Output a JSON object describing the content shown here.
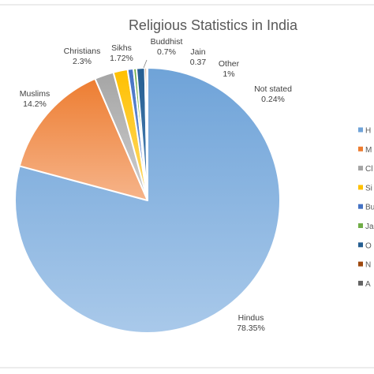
{
  "chart_data": {
    "type": "pie",
    "title": "Religious Statistics in India",
    "legend_position": "right",
    "slices": [
      {
        "name": "Hindus",
        "value": 78.35,
        "value_label": "78.35%",
        "legend_label": "H",
        "color": "#6fa3d8",
        "color_light": "#a9c9ea"
      },
      {
        "name": "Muslims",
        "value": 14.2,
        "value_label": "14.2%",
        "legend_label": "M",
        "color": "#ed7d31",
        "color_light": "#f6b48a"
      },
      {
        "name": "Christians",
        "value": 2.3,
        "value_label": "2.3%",
        "legend_label": "Cl",
        "color": "#a5a5a5",
        "color_light": "#cfcfcf"
      },
      {
        "name": "Sikhs",
        "value": 1.72,
        "value_label": "1.72%",
        "legend_label": "Si",
        "color": "#ffc000",
        "color_light": "#ffdb6e"
      },
      {
        "name": "Buddhist",
        "value": 0.7,
        "value_label": "0.7%",
        "legend_label": "Bu",
        "color": "#4472c4",
        "color_light": "#7f9fdb"
      },
      {
        "name": "Jain",
        "value": 0.37,
        "value_label": "0.37",
        "legend_label": "Ja",
        "color": "#70ad47",
        "color_light": "#a3cf86"
      },
      {
        "name": "Other",
        "value": 1,
        "value_label": "1%",
        "legend_label": "O",
        "color": "#255e91",
        "color_light": "#4f85b8"
      },
      {
        "name": "Not stated",
        "value": 0.24,
        "value_label": "0.24%",
        "legend_label": "N",
        "color": "#9e480e",
        "color_light": "#c9743f"
      },
      {
        "name": "",
        "value": 0.08,
        "value_label": "",
        "legend_label": "A",
        "color": "#636363",
        "color_light": "#8c8c8c"
      }
    ]
  }
}
